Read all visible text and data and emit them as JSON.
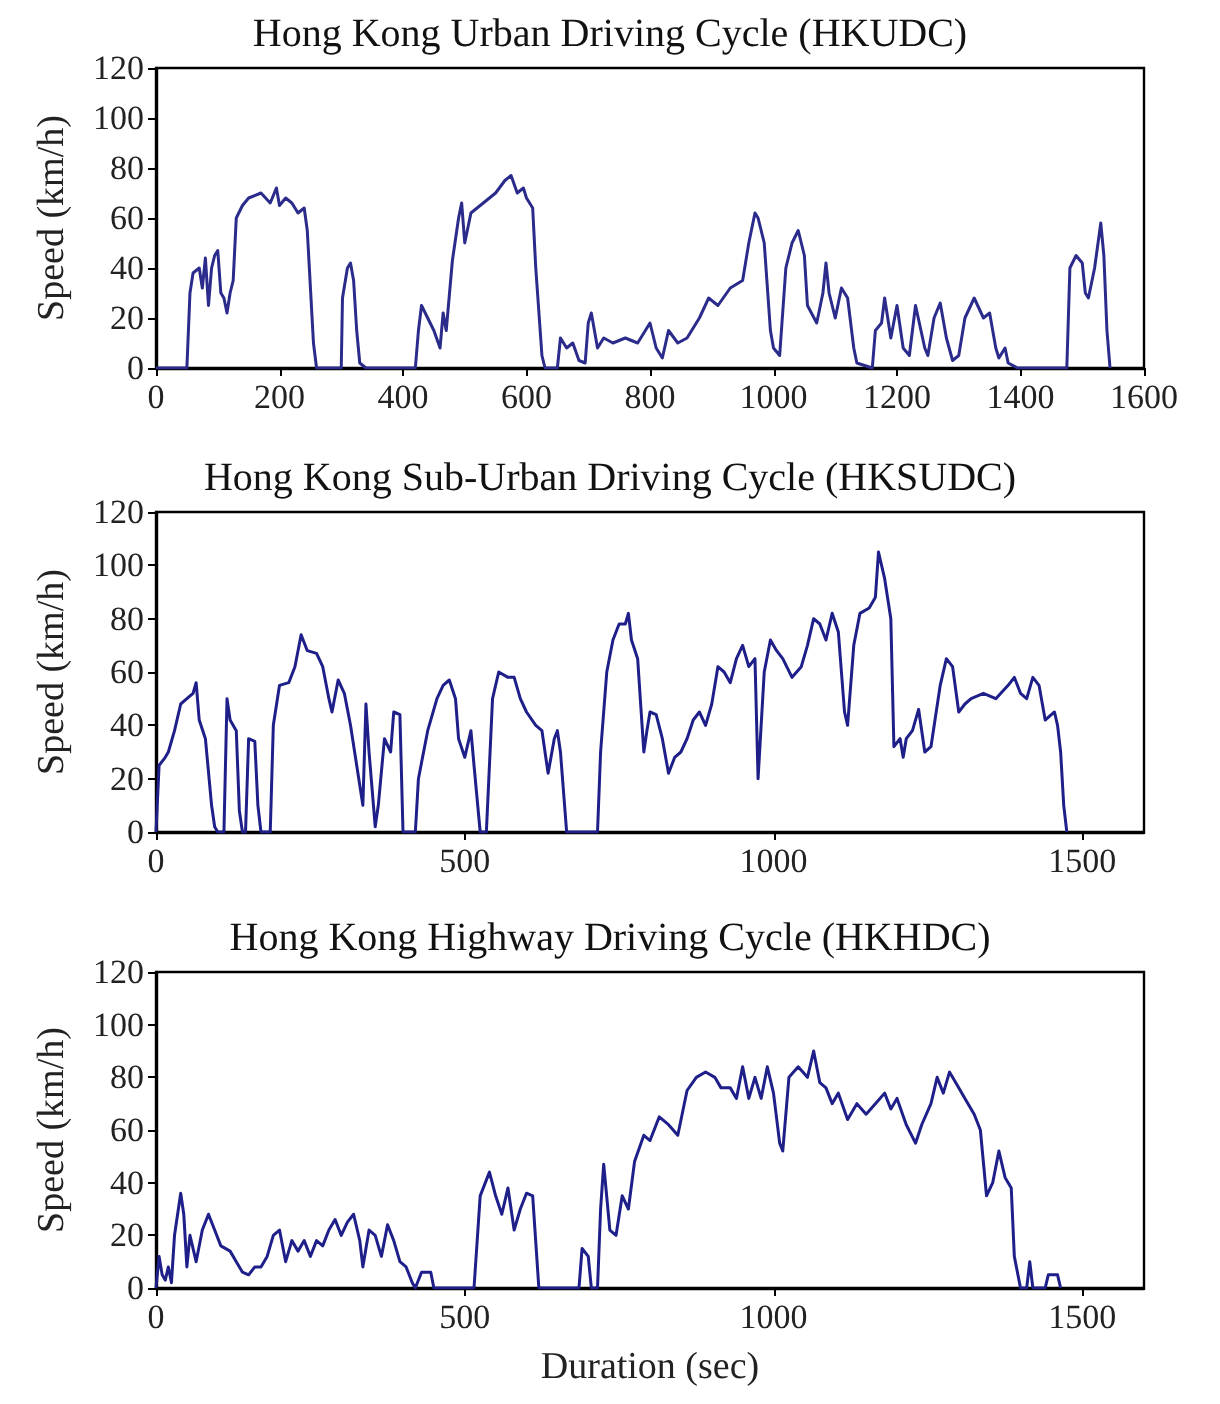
{
  "chart_data": [
    {
      "type": "line",
      "title": "Hong Kong Urban Driving Cycle (HKUDC)",
      "ylabel": "Speed (km/h)",
      "xlim": [
        0,
        1600
      ],
      "xticks": [
        0,
        200,
        400,
        600,
        800,
        1000,
        1200,
        1400,
        1600
      ],
      "ylim": [
        0,
        120
      ],
      "yticks": [
        0,
        20,
        40,
        60,
        80,
        100,
        120
      ],
      "grid": false,
      "marker": "none",
      "line_style": "solid",
      "color": "#2b2b8c",
      "x": [
        0,
        50,
        55,
        60,
        70,
        75,
        80,
        85,
        90,
        95,
        100,
        105,
        110,
        115,
        120,
        125,
        130,
        140,
        150,
        170,
        185,
        195,
        200,
        210,
        220,
        230,
        240,
        245,
        255,
        260,
        300,
        302,
        310,
        315,
        320,
        325,
        330,
        340,
        420,
        425,
        430,
        440,
        450,
        460,
        465,
        470,
        480,
        490,
        495,
        500,
        510,
        530,
        550,
        565,
        575,
        585,
        595,
        600,
        610,
        615,
        625,
        630,
        650,
        655,
        665,
        675,
        685,
        695,
        700,
        705,
        715,
        725,
        740,
        760,
        780,
        800,
        810,
        820,
        830,
        845,
        860,
        880,
        895,
        910,
        930,
        950,
        960,
        970,
        975,
        985,
        995,
        1000,
        1010,
        1020,
        1030,
        1040,
        1050,
        1055,
        1070,
        1080,
        1085,
        1090,
        1100,
        1110,
        1120,
        1130,
        1135,
        1160,
        1165,
        1175,
        1180,
        1190,
        1200,
        1210,
        1220,
        1230,
        1245,
        1250,
        1260,
        1270,
        1280,
        1290,
        1300,
        1310,
        1325,
        1340,
        1350,
        1360,
        1365,
        1375,
        1380,
        1395,
        1475,
        1480,
        1490,
        1500,
        1505,
        1510,
        1520,
        1530,
        1535,
        1540,
        1545
      ],
      "values": [
        0,
        0,
        30,
        38,
        40,
        32,
        44,
        25,
        40,
        45,
        47,
        30,
        28,
        22,
        30,
        35,
        60,
        65,
        68,
        70,
        66,
        72,
        65,
        68,
        66,
        62,
        64,
        55,
        10,
        0,
        0,
        28,
        40,
        42,
        35,
        15,
        2,
        0,
        0,
        15,
        25,
        20,
        15,
        8,
        22,
        15,
        43,
        60,
        66,
        50,
        62,
        66,
        70,
        75,
        77,
        70,
        72,
        68,
        64,
        40,
        5,
        0,
        0,
        12,
        8,
        10,
        3,
        2,
        18,
        22,
        8,
        12,
        10,
        12,
        10,
        18,
        8,
        4,
        15,
        10,
        12,
        20,
        28,
        25,
        32,
        35,
        50,
        62,
        60,
        50,
        15,
        8,
        5,
        40,
        50,
        55,
        45,
        25,
        18,
        30,
        42,
        30,
        20,
        32,
        28,
        8,
        2,
        0,
        15,
        18,
        28,
        12,
        25,
        8,
        5,
        25,
        8,
        5,
        20,
        26,
        12,
        3,
        5,
        20,
        28,
        20,
        22,
        8,
        4,
        8,
        2,
        0,
        0,
        40,
        45,
        42,
        30,
        28,
        40,
        58,
        45,
        15,
        0
      ]
    },
    {
      "type": "line",
      "title": "Hong Kong Sub-Urban Driving Cycle (HKSUDC)",
      "ylabel": "Speed (km/h)",
      "xlim": [
        0,
        1600
      ],
      "xticks": [
        0,
        500,
        1000,
        1500
      ],
      "ylim": [
        0,
        120
      ],
      "yticks": [
        0,
        20,
        40,
        60,
        80,
        100,
        120
      ],
      "grid": false,
      "marker": "none",
      "line_style": "solid",
      "color": "#1f1f8a",
      "x": [
        0,
        5,
        15,
        20,
        30,
        40,
        50,
        60,
        65,
        70,
        80,
        90,
        95,
        100,
        110,
        115,
        120,
        130,
        135,
        140,
        145,
        150,
        160,
        165,
        170,
        185,
        190,
        200,
        215,
        225,
        235,
        245,
        260,
        270,
        280,
        285,
        295,
        305,
        315,
        325,
        335,
        340,
        345,
        355,
        360,
        370,
        380,
        385,
        395,
        400,
        420,
        425,
        440,
        455,
        465,
        475,
        485,
        490,
        500,
        510,
        515,
        525,
        535,
        545,
        555,
        570,
        580,
        590,
        600,
        615,
        625,
        635,
        645,
        650,
        655,
        665,
        715,
        720,
        730,
        740,
        750,
        760,
        765,
        770,
        780,
        790,
        795,
        800,
        810,
        820,
        830,
        840,
        850,
        860,
        870,
        880,
        890,
        900,
        910,
        920,
        930,
        940,
        950,
        960,
        970,
        975,
        985,
        995,
        1005,
        1015,
        1030,
        1045,
        1055,
        1065,
        1075,
        1085,
        1095,
        1105,
        1115,
        1120,
        1130,
        1140,
        1155,
        1165,
        1170,
        1180,
        1190,
        1195,
        1205,
        1210,
        1215,
        1225,
        1235,
        1245,
        1255,
        1270,
        1280,
        1290,
        1300,
        1310,
        1320,
        1340,
        1360,
        1380,
        1390,
        1400,
        1410,
        1420,
        1430,
        1440,
        1450,
        1455,
        1460,
        1465,
        1470,
        1475
      ],
      "values": [
        0,
        25,
        28,
        30,
        38,
        48,
        50,
        52,
        56,
        42,
        35,
        10,
        2,
        0,
        0,
        50,
        42,
        38,
        8,
        0,
        0,
        35,
        34,
        10,
        0,
        0,
        40,
        55,
        56,
        62,
        74,
        68,
        67,
        62,
        50,
        45,
        57,
        52,
        40,
        25,
        10,
        48,
        30,
        2,
        10,
        35,
        30,
        45,
        44,
        0,
        0,
        20,
        38,
        50,
        55,
        57,
        50,
        35,
        28,
        38,
        25,
        0,
        0,
        50,
        60,
        58,
        58,
        50,
        45,
        40,
        38,
        22,
        35,
        38,
        30,
        0,
        0,
        30,
        60,
        72,
        78,
        78,
        82,
        72,
        65,
        30,
        38,
        45,
        44,
        35,
        22,
        28,
        30,
        35,
        42,
        45,
        40,
        48,
        62,
        60,
        56,
        65,
        70,
        62,
        65,
        20,
        60,
        72,
        68,
        65,
        58,
        62,
        70,
        80,
        78,
        72,
        82,
        75,
        45,
        40,
        70,
        82,
        84,
        88,
        105,
        95,
        80,
        32,
        35,
        28,
        35,
        38,
        46,
        30,
        32,
        55,
        65,
        62,
        45,
        48,
        50,
        52,
        50,
        55,
        58,
        52,
        50,
        58,
        55,
        42,
        44,
        45,
        40,
        30,
        10,
        0
      ]
    },
    {
      "type": "line",
      "title": "Hong Kong Highway Driving Cycle (HKHDC)",
      "xlabel": "Duration (sec)",
      "ylabel": "Speed (km/h)",
      "xlim": [
        0,
        1600
      ],
      "xticks": [
        0,
        500,
        1000,
        1500
      ],
      "ylim": [
        0,
        120
      ],
      "yticks": [
        0,
        20,
        40,
        60,
        80,
        100,
        120
      ],
      "grid": false,
      "marker": "none",
      "line_style": "solid",
      "color": "#1f1f8a",
      "x": [
        0,
        5,
        10,
        15,
        20,
        25,
        30,
        40,
        45,
        50,
        55,
        65,
        75,
        85,
        95,
        105,
        120,
        130,
        140,
        150,
        160,
        170,
        180,
        190,
        200,
        210,
        220,
        230,
        240,
        250,
        260,
        270,
        280,
        290,
        300,
        310,
        320,
        330,
        335,
        345,
        355,
        365,
        375,
        385,
        395,
        405,
        415,
        420,
        430,
        445,
        450,
        515,
        525,
        540,
        550,
        560,
        570,
        580,
        590,
        600,
        610,
        620,
        685,
        690,
        700,
        705,
        715,
        720,
        725,
        735,
        745,
        755,
        765,
        775,
        790,
        800,
        815,
        830,
        845,
        860,
        875,
        890,
        905,
        915,
        930,
        940,
        950,
        960,
        970,
        980,
        990,
        1000,
        1010,
        1015,
        1025,
        1040,
        1055,
        1065,
        1075,
        1085,
        1095,
        1105,
        1120,
        1135,
        1150,
        1165,
        1180,
        1190,
        1200,
        1215,
        1230,
        1240,
        1255,
        1265,
        1275,
        1285,
        1295,
        1310,
        1325,
        1335,
        1345,
        1355,
        1365,
        1375,
        1385,
        1390,
        1400,
        1410,
        1415,
        1420,
        1440,
        1445,
        1460,
        1465
      ],
      "values": [
        0,
        12,
        5,
        3,
        8,
        2,
        20,
        36,
        28,
        8,
        20,
        10,
        22,
        28,
        22,
        16,
        14,
        10,
        6,
        5,
        8,
        8,
        12,
        20,
        22,
        10,
        18,
        14,
        18,
        12,
        18,
        16,
        22,
        26,
        20,
        25,
        28,
        18,
        8,
        22,
        20,
        12,
        24,
        18,
        10,
        8,
        2,
        0,
        6,
        6,
        0,
        0,
        35,
        44,
        35,
        28,
        38,
        22,
        30,
        36,
        35,
        0,
        0,
        15,
        12,
        0,
        0,
        30,
        47,
        22,
        20,
        35,
        30,
        48,
        58,
        56,
        65,
        62,
        58,
        75,
        80,
        82,
        80,
        76,
        76,
        72,
        84,
        72,
        80,
        72,
        84,
        74,
        55,
        52,
        80,
        84,
        80,
        90,
        78,
        76,
        70,
        74,
        64,
        70,
        66,
        70,
        74,
        68,
        72,
        62,
        55,
        62,
        70,
        80,
        74,
        82,
        78,
        72,
        66,
        60,
        35,
        40,
        52,
        42,
        38,
        12,
        0,
        0,
        10,
        0,
        0,
        5,
        5,
        0
      ]
    }
  ]
}
